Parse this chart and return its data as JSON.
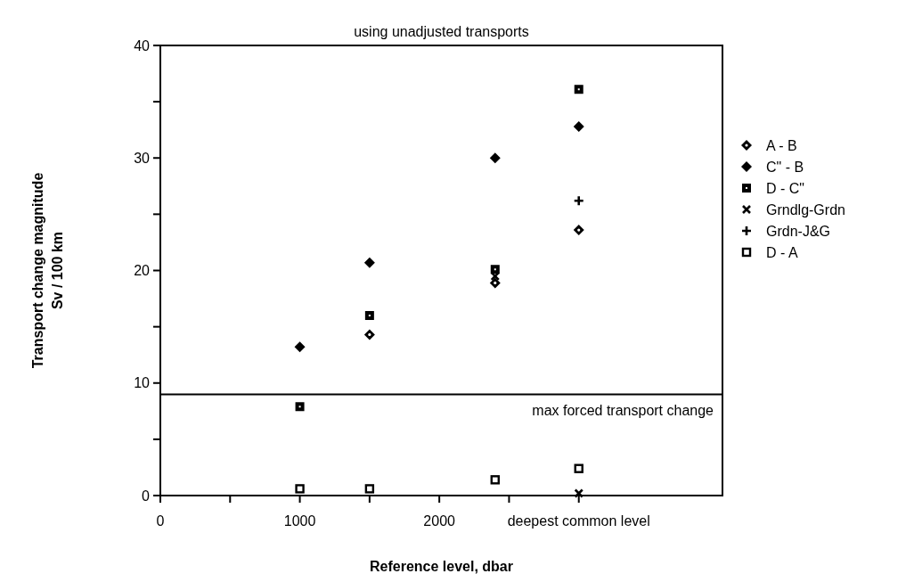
{
  "chart_data": {
    "type": "scatter",
    "title": "using unadjusted transports",
    "xlabel": "Reference level, dbar",
    "ylabel": "Transport change magnitude\nSv / 100 km",
    "xlim": [
      0,
      4030
    ],
    "xticks": [
      0,
      {
        "value": 500,
        "label": null
      },
      1000,
      {
        "value": 1500,
        "label": null
      },
      2000,
      {
        "value": 2500,
        "label": null
      },
      {
        "value": 3000,
        "label": "deepest common level"
      }
    ],
    "ylim": [
      0,
      40
    ],
    "yticks": [
      0,
      {
        "value": 5,
        "label": null
      },
      10,
      {
        "value": 15,
        "label": null
      },
      20,
      {
        "value": 25,
        "label": null
      },
      30,
      {
        "value": 35,
        "label": null
      },
      40
    ],
    "legend": "right",
    "grid": false,
    "ref_lines": [
      {
        "axis": "y",
        "value": 9,
        "label": "max forced transport change",
        "color": "#000000"
      }
    ],
    "series": [
      {
        "name": "A - B",
        "color": "#000000",
        "marker": "diamond-dot",
        "x": [
          1500,
          2400,
          3000
        ],
        "values": [
          14.3,
          18.9,
          23.6
        ]
      },
      {
        "name": "C\" - B",
        "color": "#000000",
        "marker": "diamond",
        "x": [
          1000,
          1500,
          2400,
          3000
        ],
        "values": [
          13.2,
          20.7,
          30.0,
          32.8
        ]
      },
      {
        "name": "D - C\"",
        "color": "#000000",
        "marker": "square-dot",
        "x": [
          1000,
          1500,
          2400,
          3000
        ],
        "values": [
          7.9,
          16.0,
          20.1,
          36.1
        ]
      },
      {
        "name": "Grndlg-Grdn",
        "color": "#000000",
        "marker": "cross",
        "x": [
          2400,
          3000
        ],
        "values": [
          19.5,
          0.2
        ]
      },
      {
        "name": "Grdn-J&G",
        "color": "#000000",
        "marker": "plus",
        "x": [
          3000
        ],
        "values": [
          26.2
        ]
      },
      {
        "name": "D - A",
        "color": "#000000",
        "marker": "square-open",
        "x": [
          1000,
          1500,
          2400,
          3000
        ],
        "values": [
          0.6,
          0.6,
          1.4,
          2.4
        ]
      }
    ]
  }
}
